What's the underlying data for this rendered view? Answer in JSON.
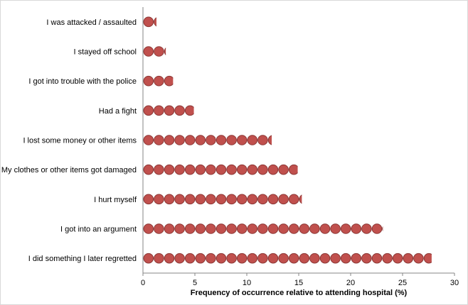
{
  "chart_data": {
    "type": "bar",
    "orientation": "horizontal",
    "marker": "stacked-circles",
    "categories": [
      "I was attacked / assaulted",
      "I stayed off school",
      "I got into trouble with the police",
      "Had a fight",
      "I lost some money or other items",
      "My clothes or other items got damaged",
      "I hurt myself",
      "I got into an argument",
      "I did something I later regretted"
    ],
    "values": [
      1.3,
      2.2,
      2.9,
      4.9,
      12.4,
      14.9,
      15.3,
      23.1,
      27.8
    ],
    "xlabel": "Frequency of occurrence relative to attending hospital (%)",
    "xlim": [
      0,
      30
    ],
    "xticks": [
      "0",
      "5",
      "10",
      "15",
      "20",
      "25",
      "30"
    ],
    "grid": false,
    "legend": "none",
    "colors": {
      "fill": "#c0504d",
      "stroke": "#8c3836"
    }
  }
}
